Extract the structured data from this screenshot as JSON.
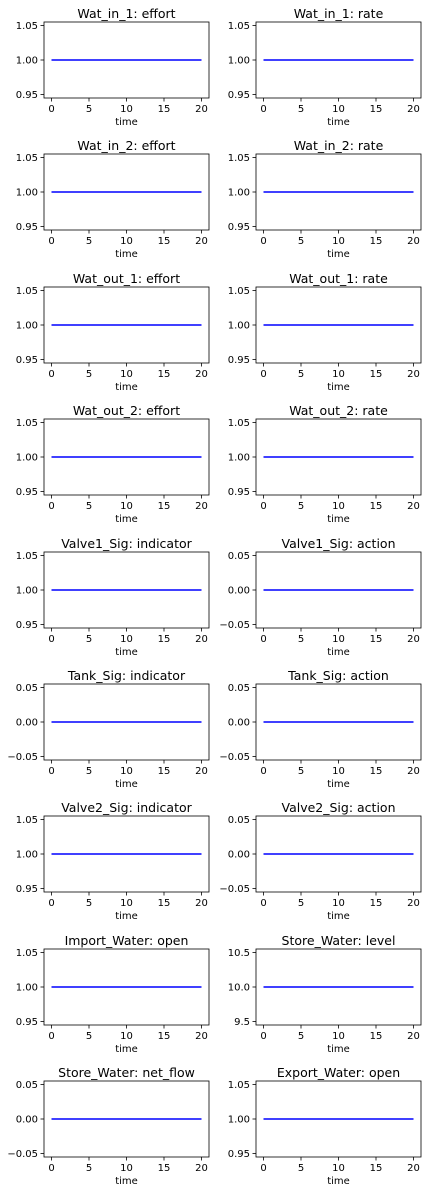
{
  "chart_data": [
    {
      "type": "line",
      "title": "Wat_in_1: effort",
      "xlabel": "time",
      "x": [
        0,
        20
      ],
      "series": [
        {
          "values": [
            1.0,
            1.0
          ],
          "color": "#0000ff"
        }
      ],
      "xlim": [
        -1,
        21
      ],
      "ylim": [
        0.945,
        1.055
      ],
      "xticks": [
        0,
        5,
        10,
        15,
        20
      ],
      "xtick_labels": [
        "0",
        "5",
        "10",
        "15",
        "20"
      ],
      "yticks": [
        0.95,
        1.0,
        1.05
      ],
      "ytick_labels": [
        "0.95",
        "1.00",
        "1.05"
      ]
    },
    {
      "type": "line",
      "title": "Wat_in_1: rate",
      "xlabel": "time",
      "x": [
        0,
        20
      ],
      "series": [
        {
          "values": [
            1.0,
            1.0
          ],
          "color": "#0000ff"
        }
      ],
      "xlim": [
        -1,
        21
      ],
      "ylim": [
        0.945,
        1.055
      ],
      "xticks": [
        0,
        5,
        10,
        15,
        20
      ],
      "xtick_labels": [
        "0",
        "5",
        "10",
        "15",
        "20"
      ],
      "yticks": [
        0.95,
        1.0,
        1.05
      ],
      "ytick_labels": [
        "0.95",
        "1.00",
        "1.05"
      ]
    },
    {
      "type": "line",
      "title": "Wat_in_2: effort",
      "xlabel": "time",
      "x": [
        0,
        20
      ],
      "series": [
        {
          "values": [
            1.0,
            1.0
          ],
          "color": "#0000ff"
        }
      ],
      "xlim": [
        -1,
        21
      ],
      "ylim": [
        0.945,
        1.055
      ],
      "xticks": [
        0,
        5,
        10,
        15,
        20
      ],
      "xtick_labels": [
        "0",
        "5",
        "10",
        "15",
        "20"
      ],
      "yticks": [
        0.95,
        1.0,
        1.05
      ],
      "ytick_labels": [
        "0.95",
        "1.00",
        "1.05"
      ]
    },
    {
      "type": "line",
      "title": "Wat_in_2: rate",
      "xlabel": "time",
      "x": [
        0,
        20
      ],
      "series": [
        {
          "values": [
            1.0,
            1.0
          ],
          "color": "#0000ff"
        }
      ],
      "xlim": [
        -1,
        21
      ],
      "ylim": [
        0.945,
        1.055
      ],
      "xticks": [
        0,
        5,
        10,
        15,
        20
      ],
      "xtick_labels": [
        "0",
        "5",
        "10",
        "15",
        "20"
      ],
      "yticks": [
        0.95,
        1.0,
        1.05
      ],
      "ytick_labels": [
        "0.95",
        "1.00",
        "1.05"
      ]
    },
    {
      "type": "line",
      "title": "Wat_out_1: effort",
      "xlabel": "time",
      "x": [
        0,
        20
      ],
      "series": [
        {
          "values": [
            1.0,
            1.0
          ],
          "color": "#0000ff"
        }
      ],
      "xlim": [
        -1,
        21
      ],
      "ylim": [
        0.945,
        1.055
      ],
      "xticks": [
        0,
        5,
        10,
        15,
        20
      ],
      "xtick_labels": [
        "0",
        "5",
        "10",
        "15",
        "20"
      ],
      "yticks": [
        0.95,
        1.0,
        1.05
      ],
      "ytick_labels": [
        "0.95",
        "1.00",
        "1.05"
      ]
    },
    {
      "type": "line",
      "title": "Wat_out_1: rate",
      "xlabel": "time",
      "x": [
        0,
        20
      ],
      "series": [
        {
          "values": [
            1.0,
            1.0
          ],
          "color": "#0000ff"
        }
      ],
      "xlim": [
        -1,
        21
      ],
      "ylim": [
        0.945,
        1.055
      ],
      "xticks": [
        0,
        5,
        10,
        15,
        20
      ],
      "xtick_labels": [
        "0",
        "5",
        "10",
        "15",
        "20"
      ],
      "yticks": [
        0.95,
        1.0,
        1.05
      ],
      "ytick_labels": [
        "0.95",
        "1.00",
        "1.05"
      ]
    },
    {
      "type": "line",
      "title": "Wat_out_2: effort",
      "xlabel": "time",
      "x": [
        0,
        20
      ],
      "series": [
        {
          "values": [
            1.0,
            1.0
          ],
          "color": "#0000ff"
        }
      ],
      "xlim": [
        -1,
        21
      ],
      "ylim": [
        0.945,
        1.055
      ],
      "xticks": [
        0,
        5,
        10,
        15,
        20
      ],
      "xtick_labels": [
        "0",
        "5",
        "10",
        "15",
        "20"
      ],
      "yticks": [
        0.95,
        1.0,
        1.05
      ],
      "ytick_labels": [
        "0.95",
        "1.00",
        "1.05"
      ]
    },
    {
      "type": "line",
      "title": "Wat_out_2: rate",
      "xlabel": "time",
      "x": [
        0,
        20
      ],
      "series": [
        {
          "values": [
            1.0,
            1.0
          ],
          "color": "#0000ff"
        }
      ],
      "xlim": [
        -1,
        21
      ],
      "ylim": [
        0.945,
        1.055
      ],
      "xticks": [
        0,
        5,
        10,
        15,
        20
      ],
      "xtick_labels": [
        "0",
        "5",
        "10",
        "15",
        "20"
      ],
      "yticks": [
        0.95,
        1.0,
        1.05
      ],
      "ytick_labels": [
        "0.95",
        "1.00",
        "1.05"
      ]
    },
    {
      "type": "line",
      "title": "Valve1_Sig: indicator",
      "xlabel": "time",
      "x": [
        0,
        20
      ],
      "series": [
        {
          "values": [
            1.0,
            1.0
          ],
          "color": "#0000ff"
        }
      ],
      "xlim": [
        -1,
        21
      ],
      "ylim": [
        0.945,
        1.055
      ],
      "xticks": [
        0,
        5,
        10,
        15,
        20
      ],
      "xtick_labels": [
        "0",
        "5",
        "10",
        "15",
        "20"
      ],
      "yticks": [
        0.95,
        1.0,
        1.05
      ],
      "ytick_labels": [
        "0.95",
        "1.00",
        "1.05"
      ]
    },
    {
      "type": "line",
      "title": "Valve1_Sig: action",
      "xlabel": "time",
      "x": [
        0,
        20
      ],
      "series": [
        {
          "values": [
            0.0,
            0.0
          ],
          "color": "#0000ff"
        }
      ],
      "xlim": [
        -1,
        21
      ],
      "ylim": [
        -0.055,
        0.055
      ],
      "xticks": [
        0,
        5,
        10,
        15,
        20
      ],
      "xtick_labels": [
        "0",
        "5",
        "10",
        "15",
        "20"
      ],
      "yticks": [
        -0.05,
        0.0,
        0.05
      ],
      "ytick_labels": [
        "−0.05",
        "0.00",
        "0.05"
      ]
    },
    {
      "type": "line",
      "title": "Tank_Sig: indicator",
      "xlabel": "time",
      "x": [
        0,
        20
      ],
      "series": [
        {
          "values": [
            0.0,
            0.0
          ],
          "color": "#0000ff"
        }
      ],
      "xlim": [
        -1,
        21
      ],
      "ylim": [
        -0.055,
        0.055
      ],
      "xticks": [
        0,
        5,
        10,
        15,
        20
      ],
      "xtick_labels": [
        "0",
        "5",
        "10",
        "15",
        "20"
      ],
      "yticks": [
        -0.05,
        0.0,
        0.05
      ],
      "ytick_labels": [
        "−0.05",
        "0.00",
        "0.05"
      ]
    },
    {
      "type": "line",
      "title": "Tank_Sig: action",
      "xlabel": "time",
      "x": [
        0,
        20
      ],
      "series": [
        {
          "values": [
            0.0,
            0.0
          ],
          "color": "#0000ff"
        }
      ],
      "xlim": [
        -1,
        21
      ],
      "ylim": [
        -0.055,
        0.055
      ],
      "xticks": [
        0,
        5,
        10,
        15,
        20
      ],
      "xtick_labels": [
        "0",
        "5",
        "10",
        "15",
        "20"
      ],
      "yticks": [
        -0.05,
        0.0,
        0.05
      ],
      "ytick_labels": [
        "−0.05",
        "0.00",
        "0.05"
      ]
    },
    {
      "type": "line",
      "title": "Valve2_Sig: indicator",
      "xlabel": "time",
      "x": [
        0,
        20
      ],
      "series": [
        {
          "values": [
            1.0,
            1.0
          ],
          "color": "#0000ff"
        }
      ],
      "xlim": [
        -1,
        21
      ],
      "ylim": [
        0.945,
        1.055
      ],
      "xticks": [
        0,
        5,
        10,
        15,
        20
      ],
      "xtick_labels": [
        "0",
        "5",
        "10",
        "15",
        "20"
      ],
      "yticks": [
        0.95,
        1.0,
        1.05
      ],
      "ytick_labels": [
        "0.95",
        "1.00",
        "1.05"
      ]
    },
    {
      "type": "line",
      "title": "Valve2_Sig: action",
      "xlabel": "time",
      "x": [
        0,
        20
      ],
      "series": [
        {
          "values": [
            0.0,
            0.0
          ],
          "color": "#0000ff"
        }
      ],
      "xlim": [
        -1,
        21
      ],
      "ylim": [
        -0.055,
        0.055
      ],
      "xticks": [
        0,
        5,
        10,
        15,
        20
      ],
      "xtick_labels": [
        "0",
        "5",
        "10",
        "15",
        "20"
      ],
      "yticks": [
        -0.05,
        0.0,
        0.05
      ],
      "ytick_labels": [
        "−0.05",
        "0.00",
        "0.05"
      ]
    },
    {
      "type": "line",
      "title": "Import_Water: open",
      "xlabel": "time",
      "x": [
        0,
        20
      ],
      "series": [
        {
          "values": [
            1.0,
            1.0
          ],
          "color": "#0000ff"
        }
      ],
      "xlim": [
        -1,
        21
      ],
      "ylim": [
        0.945,
        1.055
      ],
      "xticks": [
        0,
        5,
        10,
        15,
        20
      ],
      "xtick_labels": [
        "0",
        "5",
        "10",
        "15",
        "20"
      ],
      "yticks": [
        0.95,
        1.0,
        1.05
      ],
      "ytick_labels": [
        "0.95",
        "1.00",
        "1.05"
      ]
    },
    {
      "type": "line",
      "title": "Store_Water: level",
      "xlabel": "time",
      "x": [
        0,
        20
      ],
      "series": [
        {
          "values": [
            10.0,
            10.0
          ],
          "color": "#0000ff"
        }
      ],
      "xlim": [
        -1,
        21
      ],
      "ylim": [
        9.45,
        10.55
      ],
      "xticks": [
        0,
        5,
        10,
        15,
        20
      ],
      "xtick_labels": [
        "0",
        "5",
        "10",
        "15",
        "20"
      ],
      "yticks": [
        9.5,
        10.0,
        10.5
      ],
      "ytick_labels": [
        "9.5",
        "10.0",
        "10.5"
      ]
    },
    {
      "type": "line",
      "title": "Store_Water: net_flow",
      "xlabel": "time",
      "x": [
        0,
        20
      ],
      "series": [
        {
          "values": [
            0.0,
            0.0
          ],
          "color": "#0000ff"
        }
      ],
      "xlim": [
        -1,
        21
      ],
      "ylim": [
        -0.055,
        0.055
      ],
      "xticks": [
        0,
        5,
        10,
        15,
        20
      ],
      "xtick_labels": [
        "0",
        "5",
        "10",
        "15",
        "20"
      ],
      "yticks": [
        -0.05,
        0.0,
        0.05
      ],
      "ytick_labels": [
        "−0.05",
        "0.00",
        "0.05"
      ]
    },
    {
      "type": "line",
      "title": "Export_Water: open",
      "xlabel": "time",
      "x": [
        0,
        20
      ],
      "series": [
        {
          "values": [
            1.0,
            1.0
          ],
          "color": "#0000ff"
        }
      ],
      "xlim": [
        -1,
        21
      ],
      "ylim": [
        0.945,
        1.055
      ],
      "xticks": [
        0,
        5,
        10,
        15,
        20
      ],
      "xtick_labels": [
        "0",
        "5",
        "10",
        "15",
        "20"
      ],
      "yticks": [
        0.95,
        1.0,
        1.05
      ],
      "ytick_labels": [
        "0.95",
        "1.00",
        "1.05"
      ]
    }
  ]
}
